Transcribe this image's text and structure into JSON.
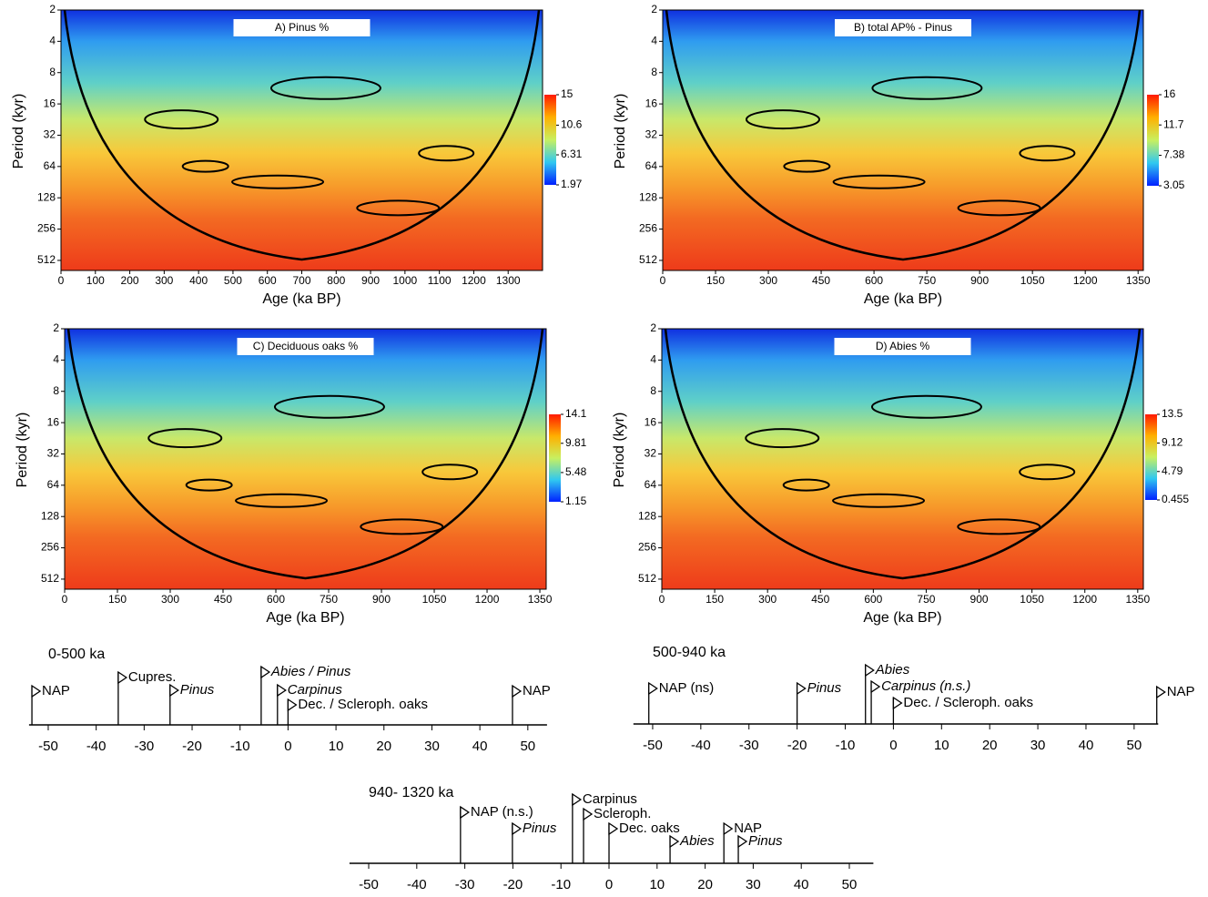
{
  "chart_data": [
    {
      "type": "wavelet",
      "title": "A) Pinus %",
      "xlabel": "Age (ka BP)",
      "ylabel": "Period (kyr)",
      "xlim": [
        0,
        1400
      ],
      "xticks": [
        0,
        100,
        200,
        300,
        400,
        500,
        600,
        700,
        800,
        900,
        1000,
        1100,
        1200,
        1300
      ],
      "ylim": [
        2,
        640
      ],
      "yscale": "log2",
      "yticks": [
        2,
        4,
        8,
        16,
        32,
        64,
        128,
        256,
        512
      ],
      "colorbar_ticks": [
        15,
        10.6,
        6.31,
        1.97
      ]
    },
    {
      "type": "wavelet",
      "title": "B) total AP% - Pinus",
      "xlabel": "Age (ka BP)",
      "ylabel": "Period (kyr)",
      "xlim": [
        0,
        1365
      ],
      "xticks": [
        0,
        150,
        300,
        450,
        600,
        750,
        900,
        1050,
        1200,
        1350
      ],
      "ylim": [
        2,
        640
      ],
      "yscale": "log2",
      "yticks": [
        2,
        4,
        8,
        16,
        32,
        64,
        128,
        256,
        512
      ],
      "colorbar_ticks": [
        16,
        11.7,
        7.38,
        3.05
      ]
    },
    {
      "type": "wavelet",
      "title": "C) Deciduous oaks %",
      "xlabel": "Age (ka BP)",
      "ylabel": "Period (kyr)",
      "xlim": [
        0,
        1368
      ],
      "xticks": [
        0,
        150,
        300,
        450,
        600,
        750,
        900,
        1050,
        1200,
        1350
      ],
      "ylim": [
        2,
        640
      ],
      "yscale": "log2",
      "yticks": [
        2,
        4,
        8,
        16,
        32,
        64,
        128,
        256,
        512
      ],
      "colorbar_ticks": [
        14.1,
        9.81,
        5.48,
        1.15
      ]
    },
    {
      "type": "wavelet",
      "title": "D) Abies %",
      "xlabel": "Age (ka BP)",
      "ylabel": "Period (kyr)",
      "xlim": [
        0,
        1366
      ],
      "xticks": [
        0,
        150,
        300,
        450,
        600,
        750,
        900,
        1050,
        1200,
        1350
      ],
      "ylim": [
        2,
        640
      ],
      "yscale": "log2",
      "yticks": [
        2,
        4,
        8,
        16,
        32,
        64,
        128,
        256,
        512
      ],
      "colorbar_ticks": [
        13.5,
        9.12,
        4.79,
        0.455
      ]
    },
    {
      "type": "lag",
      "title": "0-500 ka",
      "xlim": [
        -54,
        54
      ],
      "xticks": [
        -50,
        -40,
        -30,
        -20,
        -10,
        0,
        10,
        20,
        30,
        40,
        50
      ],
      "events": [
        {
          "label": "NAP",
          "value": -53.4,
          "italic": false
        },
        {
          "label": "Cupres.",
          "value": -35.4,
          "italic": false
        },
        {
          "label": "Pinus",
          "value": -24.6,
          "italic": true
        },
        {
          "label": "Abies / Pinus",
          "value": -5.6,
          "italic": true
        },
        {
          "label": "Carpinus",
          "value": -2.2,
          "italic": true
        },
        {
          "label": "Dec. / Scleroph. oaks",
          "value": 0,
          "italic": false
        },
        {
          "label": "NAP",
          "value": 46.8,
          "italic": false
        }
      ]
    },
    {
      "type": "lag",
      "title": "500-940 ka",
      "xlim": [
        -54,
        55
      ],
      "xticks": [
        -50,
        -40,
        -30,
        -20,
        -10,
        0,
        10,
        20,
        30,
        40,
        50
      ],
      "events": [
        {
          "label": "NAP (ns)",
          "value": -50.8,
          "italic": false
        },
        {
          "label": "Pinus",
          "value": -20,
          "italic": true
        },
        {
          "label": "Abies",
          "value": -5.8,
          "italic": true
        },
        {
          "label": "Carpinus (n.s.)",
          "value": -4.6,
          "italic": true
        },
        {
          "label": "Dec. / Scleroph. oaks",
          "value": 0,
          "italic": false
        },
        {
          "label": "NAP",
          "value": 54.7,
          "italic": false
        }
      ]
    },
    {
      "type": "lag",
      "title": "940- 1320 ka",
      "xlim": [
        -54,
        55
      ],
      "xticks": [
        -50,
        -40,
        -30,
        -20,
        -10,
        0,
        10,
        20,
        30,
        40,
        50
      ],
      "events": [
        {
          "label": "NAP (n.s.)",
          "value": -30.9,
          "italic": false
        },
        {
          "label": "Pinus",
          "value": -20.1,
          "italic": true
        },
        {
          "label": "Carpinus",
          "value": -7.6,
          "italic": false
        },
        {
          "label": "Scleroph.",
          "value": -5.3,
          "italic": false
        },
        {
          "label": "Dec. oaks",
          "value": 0,
          "italic": false
        },
        {
          "label": "Abies",
          "value": 12.7,
          "italic": true
        },
        {
          "label": "NAP",
          "value": 23.9,
          "italic": false
        },
        {
          "label": "Pinus",
          "value": 26.9,
          "italic": true
        }
      ]
    }
  ]
}
